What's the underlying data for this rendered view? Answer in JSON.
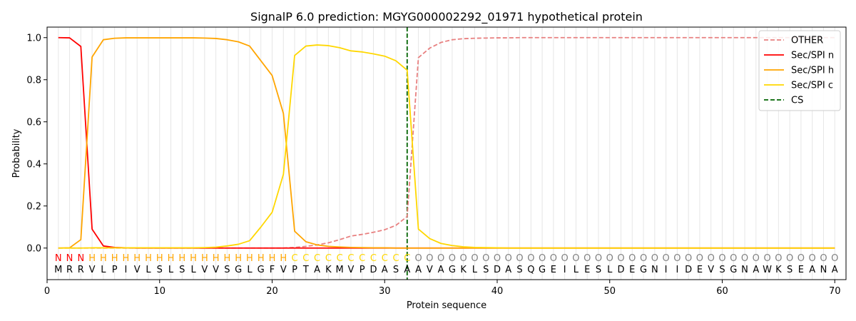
{
  "chart_data": {
    "type": "line",
    "title": "SignalP 6.0 prediction: MGYG000002292_01971 hypothetical protein",
    "xlabel": "Protein sequence",
    "ylabel": "Probability",
    "xlim": [
      0,
      71
    ],
    "ylim": [
      -0.15,
      1.05
    ],
    "xticks": [
      0,
      10,
      20,
      30,
      40,
      50,
      60,
      70
    ],
    "yticks": [
      0.0,
      0.2,
      0.4,
      0.6,
      0.8,
      1.0
    ],
    "xtick_labels": [
      "0",
      "10",
      "20",
      "30",
      "40",
      "50",
      "60",
      "70"
    ],
    "ytick_labels": [
      "0.0",
      "0.2",
      "0.4",
      "0.6",
      "0.8",
      "1.0"
    ],
    "grid": "vertical lines at each residue",
    "legend_position": "top-right",
    "sequence": "MRRVLPIVLSLSLVVSGLGFVPTAKMVPDASAAVAGKLSDASQGEILESLDEGNIIDEVSGNAWKSEANA",
    "annotation": "NNNHHHHHHHHHHHHHHHHHHCCCCCCCCCCCOOOOOOOOOOOOOOOOOOOOOOOOOOOOOOOOOOOOOO",
    "annotation_colors": {
      "N": "#ff0000",
      "H": "#ffa500",
      "C": "#ffd700",
      "O": "#808080"
    },
    "cleavage_site": 32,
    "series": [
      {
        "name": "OTHER",
        "color": "#e88080",
        "dash": true,
        "values": [
          0.0,
          0.0,
          0.0,
          0.0,
          0.0,
          0.0,
          0.0,
          0.0,
          0.0,
          0.0,
          0.0,
          0.0,
          0.0,
          0.0,
          0.0,
          0.0,
          0.0,
          0.0,
          0.0,
          0.0,
          0.0,
          0.003,
          0.008,
          0.015,
          0.025,
          0.04,
          0.057,
          0.065,
          0.075,
          0.087,
          0.108,
          0.15,
          0.905,
          0.95,
          0.977,
          0.99,
          0.995,
          0.997,
          0.998,
          0.999,
          0.999,
          1.0,
          1.0,
          1.0,
          1.0,
          1.0,
          1.0,
          1.0,
          1.0,
          1.0,
          1.0,
          1.0,
          1.0,
          1.0,
          1.0,
          1.0,
          1.0,
          1.0,
          1.0,
          1.0,
          1.0,
          1.0,
          1.0,
          1.0,
          1.0,
          1.0,
          1.0,
          1.0,
          1.0,
          1.0
        ]
      },
      {
        "name": "Sec/SPI n",
        "color": "#ff0000",
        "dash": false,
        "values": [
          1.0,
          0.999,
          0.958,
          0.09,
          0.01,
          0.003,
          0.001,
          0.0,
          0.0,
          0.0,
          0.0,
          0.0,
          0.0,
          0.0,
          0.0,
          0.0,
          0.0,
          0.0,
          0.0,
          0.0,
          0.0,
          0.0,
          0.0,
          0.0,
          0.0,
          0.0,
          0.0,
          0.0,
          0.0,
          0.0,
          0.0,
          0.0,
          0.0,
          0.0,
          0.0,
          0.0,
          0.0,
          0.0,
          0.0,
          0.0,
          0.0,
          0.0,
          0.0,
          0.0,
          0.0,
          0.0,
          0.0,
          0.0,
          0.0,
          0.0,
          0.0,
          0.0,
          0.0,
          0.0,
          0.0,
          0.0,
          0.0,
          0.0,
          0.0,
          0.0,
          0.0,
          0.0,
          0.0,
          0.0,
          0.0,
          0.0,
          0.0,
          0.0,
          0.0,
          0.0
        ]
      },
      {
        "name": "Sec/SPI h",
        "color": "#ffa500",
        "dash": false,
        "values": [
          0.0,
          0.001,
          0.04,
          0.908,
          0.99,
          0.997,
          0.999,
          0.999,
          0.999,
          0.999,
          0.999,
          0.999,
          0.999,
          0.998,
          0.996,
          0.99,
          0.98,
          0.96,
          0.89,
          0.82,
          0.64,
          0.08,
          0.03,
          0.015,
          0.008,
          0.005,
          0.003,
          0.002,
          0.001,
          0.001,
          0.0,
          0.0,
          0.0,
          0.0,
          0.0,
          0.0,
          0.0,
          0.0,
          0.0,
          0.0,
          0.0,
          0.0,
          0.0,
          0.0,
          0.0,
          0.0,
          0.0,
          0.0,
          0.0,
          0.0,
          0.0,
          0.0,
          0.0,
          0.0,
          0.0,
          0.0,
          0.0,
          0.0,
          0.0,
          0.0,
          0.0,
          0.0,
          0.0,
          0.0,
          0.0,
          0.0,
          0.0,
          0.0,
          0.0,
          0.0
        ]
      },
      {
        "name": "Sec/SPI c",
        "color": "#ffd700",
        "dash": false,
        "values": [
          0.0,
          0.0,
          0.0,
          0.001,
          0.001,
          0.001,
          0.001,
          0.001,
          0.001,
          0.001,
          0.001,
          0.001,
          0.001,
          0.002,
          0.004,
          0.01,
          0.018,
          0.035,
          0.1,
          0.17,
          0.35,
          0.915,
          0.96,
          0.965,
          0.962,
          0.952,
          0.937,
          0.932,
          0.923,
          0.912,
          0.89,
          0.845,
          0.09,
          0.045,
          0.022,
          0.012,
          0.006,
          0.003,
          0.002,
          0.001,
          0.0,
          0.0,
          0.0,
          0.0,
          0.0,
          0.0,
          0.0,
          0.0,
          0.0,
          0.0,
          0.0,
          0.0,
          0.0,
          0.0,
          0.0,
          0.0,
          0.0,
          0.0,
          0.0,
          0.0,
          0.0,
          0.0,
          0.0,
          0.0,
          0.0,
          0.0,
          0.0,
          0.0,
          0.0,
          0.0
        ]
      }
    ],
    "legend": [
      {
        "label": "OTHER",
        "color": "#e88080",
        "style": "dashed"
      },
      {
        "label": "Sec/SPI n",
        "color": "#ff0000",
        "style": "solid"
      },
      {
        "label": "Sec/SPI h",
        "color": "#ffa500",
        "style": "solid"
      },
      {
        "label": "Sec/SPI c",
        "color": "#ffd700",
        "style": "solid"
      },
      {
        "label": "CS",
        "color": "#006400",
        "style": "dashed"
      }
    ]
  }
}
